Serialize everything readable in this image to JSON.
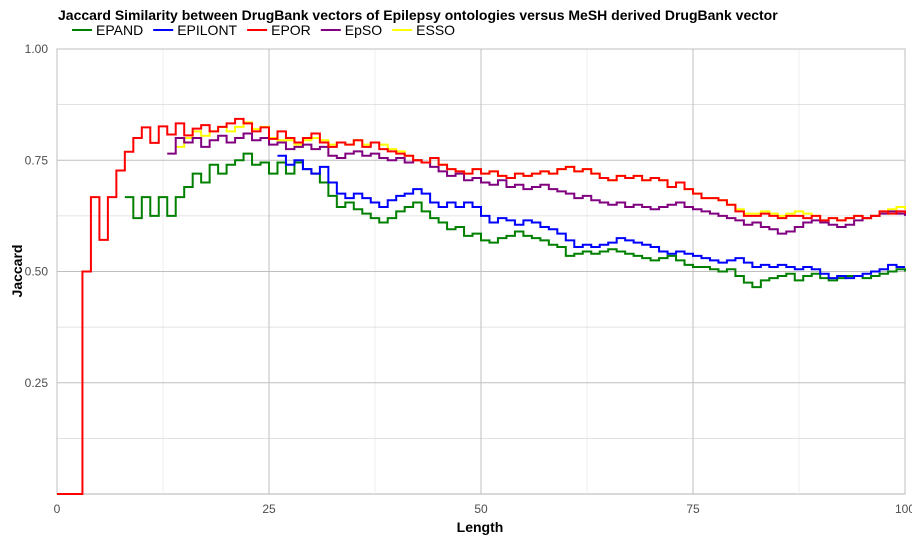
{
  "chart_data": {
    "type": "line",
    "step": true,
    "title": "Jaccard Similarity between DrugBank vectors of Epilepsy ontologies versus MeSH derived DrugBank vector",
    "xlabel": "Length",
    "ylabel": "Jaccard",
    "xlim": [
      0,
      100
    ],
    "ylim": [
      0,
      1
    ],
    "grid": true,
    "legend_position": "top-left",
    "x_ticks": [
      0,
      25,
      50,
      75,
      100
    ],
    "x_tick_labels": [
      "0",
      "25",
      "50",
      "75",
      "100"
    ],
    "y_ticks": [
      0.25,
      0.5,
      0.75,
      1.0
    ],
    "y_tick_labels": [
      "0.25",
      "0.50",
      "0.75",
      "1.00"
    ],
    "legend": [
      "EPAND",
      "EPILONT",
      "EPOR",
      "EpSO",
      "ESSO"
    ],
    "series": [
      {
        "name": "EPAND",
        "color": "#008000",
        "x": [
          8,
          9,
          10,
          11,
          12,
          13,
          14,
          15,
          16,
          17,
          18,
          19,
          20,
          21,
          22,
          23,
          24,
          25,
          26,
          27,
          28,
          29,
          30,
          31,
          32,
          33,
          34,
          35,
          36,
          37,
          38,
          39,
          40,
          41,
          42,
          43,
          44,
          45,
          46,
          47,
          48,
          49,
          50,
          51,
          52,
          53,
          54,
          55,
          56,
          57,
          58,
          59,
          60,
          61,
          62,
          63,
          64,
          65,
          66,
          67,
          68,
          69,
          70,
          71,
          72,
          73,
          74,
          75,
          76,
          77,
          78,
          79,
          80,
          81,
          82,
          83,
          84,
          85,
          86,
          87,
          88,
          89,
          90,
          91,
          92,
          93,
          94,
          95,
          96,
          97,
          98,
          99,
          100
        ],
        "y": [
          0.667,
          0.62,
          0.667,
          0.625,
          0.667,
          0.625,
          0.667,
          0.69,
          0.72,
          0.7,
          0.74,
          0.72,
          0.74,
          0.75,
          0.765,
          0.74,
          0.745,
          0.72,
          0.745,
          0.72,
          0.745,
          0.73,
          0.72,
          0.7,
          0.67,
          0.645,
          0.655,
          0.64,
          0.63,
          0.62,
          0.61,
          0.62,
          0.635,
          0.645,
          0.655,
          0.635,
          0.62,
          0.61,
          0.595,
          0.6,
          0.58,
          0.585,
          0.57,
          0.565,
          0.575,
          0.58,
          0.59,
          0.58,
          0.575,
          0.57,
          0.56,
          0.555,
          0.535,
          0.54,
          0.545,
          0.54,
          0.545,
          0.55,
          0.545,
          0.54,
          0.535,
          0.53,
          0.525,
          0.53,
          0.535,
          0.525,
          0.515,
          0.51,
          0.51,
          0.505,
          0.5,
          0.505,
          0.49,
          0.475,
          0.465,
          0.48,
          0.485,
          0.49,
          0.495,
          0.48,
          0.49,
          0.495,
          0.485,
          0.48,
          0.485,
          0.49,
          0.49,
          0.485,
          0.49,
          0.495,
          0.5,
          0.505,
          0.5
        ]
      },
      {
        "name": "EPILONT",
        "color": "#0000ff",
        "x": [
          26,
          27,
          28,
          29,
          30,
          31,
          32,
          33,
          34,
          35,
          36,
          37,
          38,
          39,
          40,
          41,
          42,
          43,
          44,
          45,
          46,
          47,
          48,
          49,
          50,
          51,
          52,
          53,
          54,
          55,
          56,
          57,
          58,
          59,
          60,
          61,
          62,
          63,
          64,
          65,
          66,
          67,
          68,
          69,
          70,
          71,
          72,
          73,
          74,
          75,
          76,
          77,
          78,
          79,
          80,
          81,
          82,
          83,
          84,
          85,
          86,
          87,
          88,
          89,
          90,
          91,
          92,
          93,
          94,
          95,
          96,
          97,
          98,
          99,
          100
        ],
        "y": [
          0.76,
          0.74,
          0.75,
          0.73,
          0.72,
          0.735,
          0.7,
          0.675,
          0.665,
          0.675,
          0.665,
          0.655,
          0.645,
          0.66,
          0.67,
          0.675,
          0.685,
          0.675,
          0.655,
          0.645,
          0.655,
          0.645,
          0.655,
          0.645,
          0.625,
          0.61,
          0.62,
          0.615,
          0.605,
          0.615,
          0.61,
          0.6,
          0.595,
          0.585,
          0.57,
          0.555,
          0.56,
          0.555,
          0.56,
          0.565,
          0.575,
          0.57,
          0.565,
          0.56,
          0.555,
          0.545,
          0.54,
          0.545,
          0.54,
          0.535,
          0.53,
          0.525,
          0.52,
          0.525,
          0.53,
          0.52,
          0.51,
          0.515,
          0.51,
          0.515,
          0.51,
          0.505,
          0.51,
          0.505,
          0.495,
          0.485,
          0.49,
          0.485,
          0.49,
          0.495,
          0.5,
          0.505,
          0.515,
          0.51,
          0.51
        ]
      },
      {
        "name": "EPOR",
        "color": "#ff0000",
        "x": [
          0,
          1,
          2,
          3,
          4,
          5,
          6,
          7,
          8,
          9,
          10,
          11,
          12,
          13,
          14,
          15,
          16,
          17,
          18,
          19,
          20,
          21,
          22,
          23,
          24,
          25,
          26,
          27,
          28,
          29,
          30,
          31,
          32,
          33,
          34,
          35,
          36,
          37,
          38,
          39,
          40,
          41,
          42,
          43,
          44,
          45,
          46,
          47,
          48,
          49,
          50,
          51,
          52,
          53,
          54,
          55,
          56,
          57,
          58,
          59,
          60,
          61,
          62,
          63,
          64,
          65,
          66,
          67,
          68,
          69,
          70,
          71,
          72,
          73,
          74,
          75,
          76,
          77,
          78,
          79,
          80,
          81,
          82,
          83,
          84,
          85,
          86,
          87,
          88,
          89,
          90,
          91,
          92,
          93,
          94,
          95,
          96,
          97,
          98,
          99,
          100
        ],
        "y": [
          0.0,
          0.0,
          0.0,
          0.5,
          0.667,
          0.571,
          0.667,
          0.727,
          0.769,
          0.8,
          0.824,
          0.789,
          0.826,
          0.808,
          0.833,
          0.806,
          0.821,
          0.829,
          0.815,
          0.825,
          0.833,
          0.843,
          0.833,
          0.815,
          0.824,
          0.798,
          0.815,
          0.8,
          0.79,
          0.8,
          0.81,
          0.79,
          0.78,
          0.79,
          0.785,
          0.795,
          0.78,
          0.79,
          0.775,
          0.77,
          0.765,
          0.76,
          0.75,
          0.745,
          0.755,
          0.74,
          0.73,
          0.725,
          0.72,
          0.73,
          0.72,
          0.725,
          0.715,
          0.71,
          0.72,
          0.715,
          0.72,
          0.725,
          0.72,
          0.73,
          0.735,
          0.725,
          0.73,
          0.72,
          0.71,
          0.705,
          0.715,
          0.71,
          0.715,
          0.705,
          0.71,
          0.705,
          0.69,
          0.7,
          0.685,
          0.675,
          0.665,
          0.665,
          0.66,
          0.65,
          0.635,
          0.625,
          0.625,
          0.63,
          0.625,
          0.62,
          0.625,
          0.625,
          0.62,
          0.625,
          0.615,
          0.62,
          0.615,
          0.62,
          0.625,
          0.62,
          0.625,
          0.635,
          0.63,
          0.635,
          0.63
        ]
      },
      {
        "name": "EpSO",
        "color": "#800080",
        "x": [
          13,
          14,
          15,
          16,
          17,
          18,
          19,
          20,
          21,
          22,
          23,
          24,
          25,
          26,
          27,
          28,
          29,
          30,
          31,
          32,
          33,
          34,
          35,
          36,
          37,
          38,
          39,
          40,
          41,
          42,
          43,
          44,
          45,
          46,
          47,
          48,
          49,
          50,
          51,
          52,
          53,
          54,
          55,
          56,
          57,
          58,
          59,
          60,
          61,
          62,
          63,
          64,
          65,
          66,
          67,
          68,
          69,
          70,
          71,
          72,
          73,
          74,
          75,
          76,
          77,
          78,
          79,
          80,
          81,
          82,
          83,
          84,
          85,
          86,
          87,
          88,
          89,
          90,
          91,
          92,
          93,
          94,
          95,
          96,
          97,
          98,
          99,
          100
        ],
        "y": [
          0.765,
          0.8,
          0.79,
          0.8,
          0.78,
          0.795,
          0.805,
          0.79,
          0.8,
          0.81,
          0.795,
          0.8,
          0.785,
          0.79,
          0.775,
          0.78,
          0.785,
          0.775,
          0.78,
          0.76,
          0.755,
          0.765,
          0.77,
          0.76,
          0.765,
          0.755,
          0.75,
          0.755,
          0.745,
          0.75,
          0.745,
          0.735,
          0.725,
          0.715,
          0.72,
          0.705,
          0.71,
          0.7,
          0.695,
          0.705,
          0.69,
          0.695,
          0.685,
          0.69,
          0.695,
          0.685,
          0.68,
          0.675,
          0.665,
          0.67,
          0.66,
          0.655,
          0.65,
          0.655,
          0.645,
          0.65,
          0.645,
          0.64,
          0.645,
          0.65,
          0.655,
          0.645,
          0.64,
          0.635,
          0.63,
          0.625,
          0.62,
          0.615,
          0.605,
          0.61,
          0.6,
          0.595,
          0.585,
          0.59,
          0.6,
          0.61,
          0.615,
          0.61,
          0.605,
          0.6,
          0.605,
          0.615,
          0.62,
          0.625,
          0.63,
          0.635,
          0.63,
          0.625
        ]
      },
      {
        "name": "ESSO",
        "color": "#ffff00",
        "x": [
          14,
          15,
          16,
          17,
          18,
          19,
          20,
          21,
          22,
          23,
          24,
          25,
          26,
          27,
          28,
          29,
          30,
          31,
          32,
          33,
          34,
          35,
          36,
          37,
          38,
          39,
          40,
          41,
          42,
          43,
          44,
          45,
          46,
          47,
          48,
          49,
          50,
          51,
          52,
          53,
          54,
          55,
          56,
          57,
          58,
          59,
          60,
          61,
          62,
          63,
          64,
          65,
          66,
          67,
          68,
          69,
          70,
          71,
          72,
          73,
          74,
          75,
          76,
          77,
          78,
          79,
          80,
          81,
          82,
          83,
          84,
          85,
          86,
          87,
          88,
          89,
          90,
          91,
          92,
          93,
          94,
          95,
          96,
          97,
          98,
          99,
          100
        ],
        "y": [
          0.78,
          0.8,
          0.815,
          0.805,
          0.815,
          0.825,
          0.815,
          0.825,
          0.835,
          0.82,
          0.825,
          0.8,
          0.795,
          0.795,
          0.785,
          0.795,
          0.8,
          0.795,
          0.785,
          0.79,
          0.785,
          0.795,
          0.785,
          0.79,
          0.785,
          0.775,
          0.77,
          0.76,
          0.75,
          0.745,
          0.755,
          0.74,
          0.73,
          0.725,
          0.72,
          0.73,
          0.72,
          0.725,
          0.715,
          0.71,
          0.72,
          0.715,
          0.72,
          0.725,
          0.72,
          0.73,
          0.735,
          0.725,
          0.73,
          0.72,
          0.71,
          0.705,
          0.715,
          0.71,
          0.715,
          0.705,
          0.71,
          0.705,
          0.69,
          0.7,
          0.685,
          0.675,
          0.665,
          0.665,
          0.66,
          0.65,
          0.64,
          0.63,
          0.63,
          0.635,
          0.63,
          0.625,
          0.63,
          0.635,
          0.63,
          0.625,
          0.615,
          0.62,
          0.615,
          0.62,
          0.625,
          0.62,
          0.625,
          0.635,
          0.64,
          0.645,
          0.64
        ]
      }
    ]
  }
}
